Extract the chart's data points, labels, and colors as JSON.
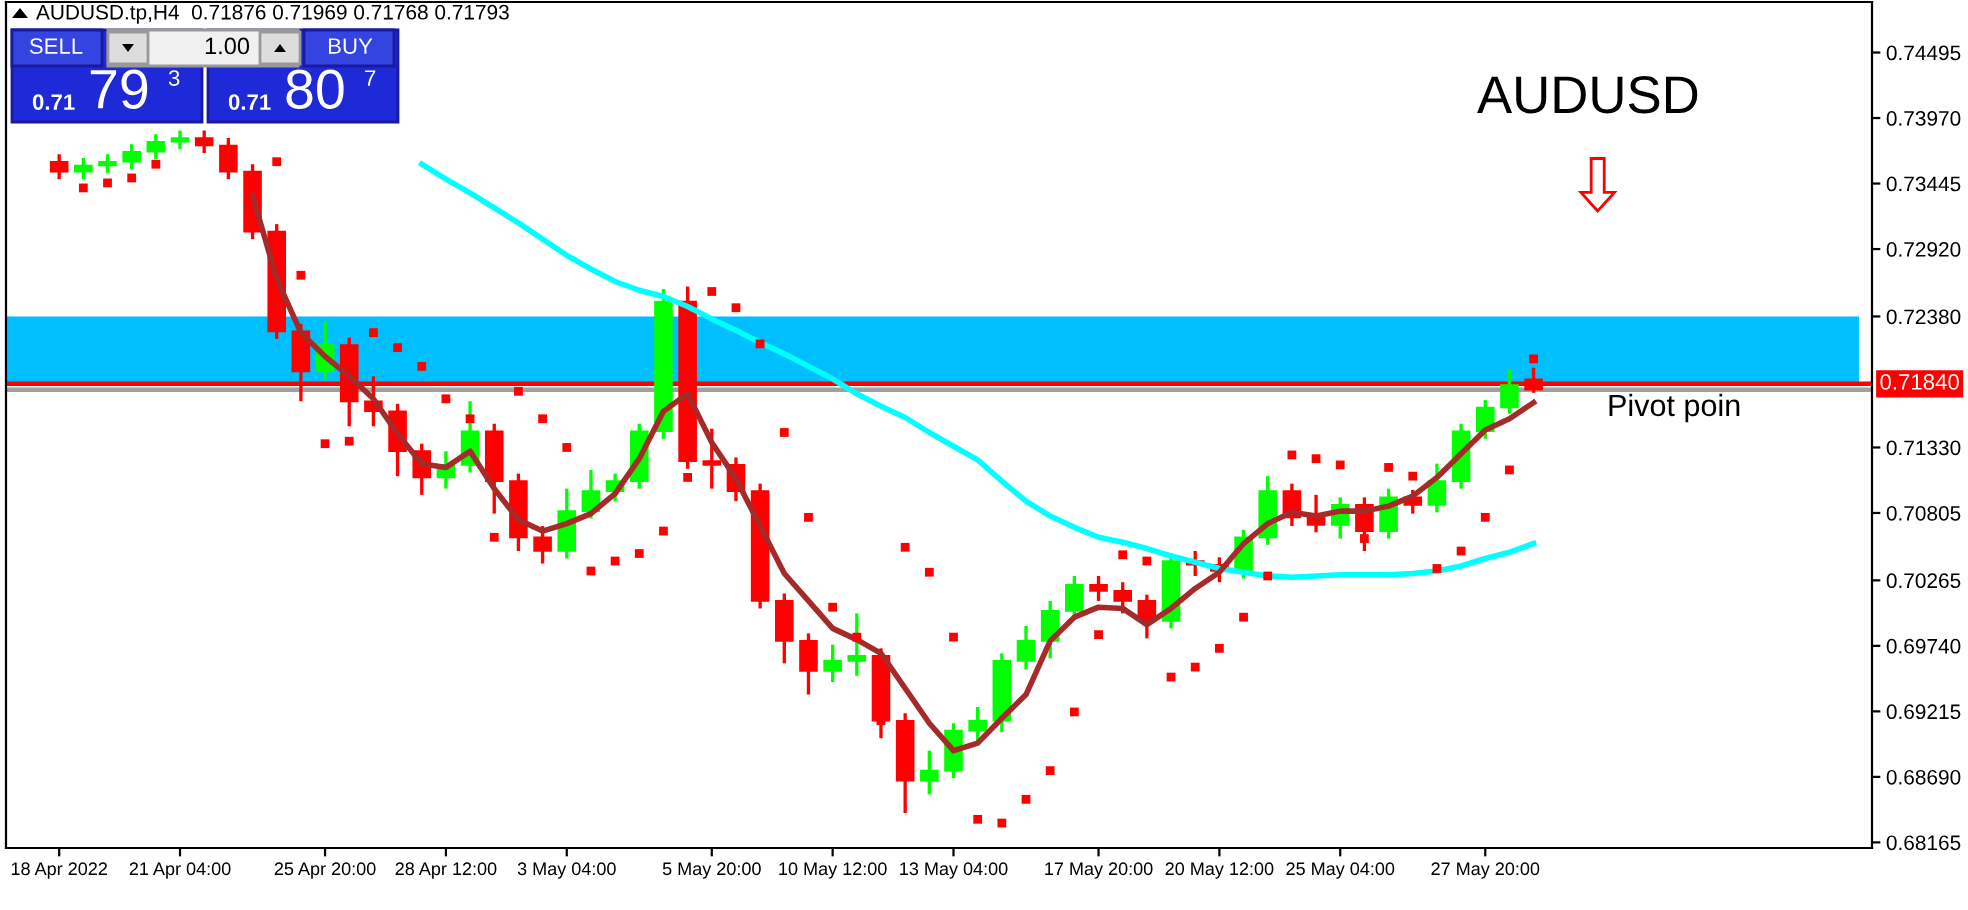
{
  "chart_data": {
    "type": "candlestick",
    "title": "AUDUSD.tp,H4  0.71876 0.71969 0.71768 0.71793",
    "categories": [
      "18 Apr 2022",
      null,
      null,
      null,
      null,
      "21 Apr 04:00",
      null,
      null,
      null,
      null,
      null,
      "25 Apr 20:00",
      null,
      null,
      null,
      null,
      "28 Apr 12:00",
      null,
      null,
      null,
      null,
      "3 May 04:00",
      null,
      null,
      null,
      null,
      null,
      "5 May 20:00",
      null,
      null,
      null,
      null,
      "10 May 12:00",
      null,
      null,
      null,
      null,
      "13 May 04:00",
      null,
      null,
      null,
      null,
      null,
      "17 May 20:00",
      null,
      null,
      null,
      null,
      "20 May 12:00",
      null,
      null,
      null,
      null,
      "25 May 04:00",
      null,
      null,
      null,
      null,
      null,
      "27 May 20:00",
      null,
      null
    ],
    "ohlc": [
      [
        0.7362,
        0.7368,
        0.7348,
        0.7354
      ],
      [
        0.7354,
        0.7365,
        0.7348,
        0.7359
      ],
      [
        0.7359,
        0.7368,
        0.7353,
        0.7362
      ],
      [
        0.7362,
        0.7376,
        0.7356,
        0.737
      ],
      [
        0.737,
        0.7384,
        0.7364,
        0.7378
      ],
      [
        0.7378,
        0.7387,
        0.7372,
        0.7381
      ],
      [
        0.7381,
        0.7387,
        0.7369,
        0.7375
      ],
      [
        0.7375,
        0.7381,
        0.7348,
        0.7354
      ],
      [
        0.7354,
        0.736,
        0.73,
        0.7306
      ],
      [
        0.7306,
        0.7312,
        0.722,
        0.7226
      ],
      [
        0.7226,
        0.7232,
        0.717,
        0.7194
      ],
      [
        0.7194,
        0.7234,
        0.7188,
        0.7215
      ],
      [
        0.7215,
        0.7221,
        0.715,
        0.717
      ],
      [
        0.717,
        0.719,
        0.715,
        0.7162
      ],
      [
        0.7162,
        0.7168,
        0.711,
        0.713
      ],
      [
        0.713,
        0.7136,
        0.7095,
        0.7109
      ],
      [
        0.7109,
        0.713,
        0.71,
        0.7119
      ],
      [
        0.7119,
        0.717,
        0.7113,
        0.7146
      ],
      [
        0.7146,
        0.7152,
        0.708,
        0.7106
      ],
      [
        0.7106,
        0.7112,
        0.705,
        0.7061
      ],
      [
        0.7061,
        0.707,
        0.704,
        0.705
      ],
      [
        0.705,
        0.71,
        0.7044,
        0.7082
      ],
      [
        0.7082,
        0.7115,
        0.7076,
        0.7098
      ],
      [
        0.7098,
        0.7112,
        0.709,
        0.7106
      ],
      [
        0.7106,
        0.7152,
        0.71,
        0.7146
      ],
      [
        0.7146,
        0.726,
        0.714,
        0.725
      ],
      [
        0.725,
        0.7262,
        0.7116,
        0.7122
      ],
      [
        0.7122,
        0.7148,
        0.71,
        0.7119
      ],
      [
        0.7119,
        0.7125,
        0.709,
        0.7098
      ],
      [
        0.7098,
        0.7104,
        0.7004,
        0.701
      ],
      [
        0.701,
        0.7016,
        0.696,
        0.6978
      ],
      [
        0.6978,
        0.6984,
        0.6935,
        0.6954
      ],
      [
        0.6954,
        0.6975,
        0.6945,
        0.6962
      ],
      [
        0.6962,
        0.7,
        0.695,
        0.6966
      ],
      [
        0.6966,
        0.6972,
        0.69,
        0.6914
      ],
      [
        0.6914,
        0.692,
        0.684,
        0.6866
      ],
      [
        0.6866,
        0.689,
        0.6855,
        0.6874
      ],
      [
        0.6874,
        0.6912,
        0.6868,
        0.6906
      ],
      [
        0.6906,
        0.6925,
        0.6895,
        0.6914
      ],
      [
        0.6914,
        0.6968,
        0.6905,
        0.6962
      ],
      [
        0.6962,
        0.699,
        0.6955,
        0.6978
      ],
      [
        0.6978,
        0.701,
        0.6964,
        0.7002
      ],
      [
        0.7002,
        0.703,
        0.6995,
        0.7023
      ],
      [
        0.7023,
        0.703,
        0.701,
        0.7018
      ],
      [
        0.7018,
        0.7025,
        0.7,
        0.701
      ],
      [
        0.701,
        0.7015,
        0.698,
        0.6994
      ],
      [
        0.6994,
        0.7048,
        0.6988,
        0.7042
      ],
      [
        0.7042,
        0.705,
        0.703,
        0.7039
      ],
      [
        0.7039,
        0.7045,
        0.7025,
        0.7034
      ],
      [
        0.7034,
        0.7067,
        0.7028,
        0.7061
      ],
      [
        0.7061,
        0.711,
        0.7055,
        0.7098
      ],
      [
        0.7098,
        0.7104,
        0.707,
        0.7077
      ],
      [
        0.7077,
        0.7095,
        0.7065,
        0.7071
      ],
      [
        0.7071,
        0.7093,
        0.706,
        0.7087
      ],
      [
        0.7087,
        0.7093,
        0.705,
        0.7066
      ],
      [
        0.7066,
        0.71,
        0.706,
        0.7093
      ],
      [
        0.7093,
        0.7099,
        0.708,
        0.7087
      ],
      [
        0.7087,
        0.712,
        0.7081,
        0.7106
      ],
      [
        0.7106,
        0.7152,
        0.71,
        0.7146
      ],
      [
        0.7146,
        0.7171,
        0.714,
        0.7165
      ],
      [
        0.7165,
        0.7195,
        0.716,
        0.7183
      ],
      [
        0.71876,
        0.71969,
        0.71768,
        0.71793
      ]
    ],
    "colors": [
      "#ff0000",
      "#00ff00",
      "#00ff00",
      "#00ff00",
      "#00ff00",
      "#00ff00",
      "#ff0000",
      "#ff0000",
      "#ff0000",
      "#ff0000",
      "#ff0000",
      "#00ff00",
      "#ff0000",
      "#ff0000",
      "#ff0000",
      "#ff0000",
      "#00ff00",
      "#00ff00",
      "#ff0000",
      "#ff0000",
      "#ff0000",
      "#00ff00",
      "#00ff00",
      "#00ff00",
      "#00ff00",
      "#00ff00",
      "#ff0000",
      "#ff0000",
      "#ff0000",
      "#ff0000",
      "#ff0000",
      "#ff0000",
      "#00ff00",
      "#00ff00",
      "#ff0000",
      "#ff0000",
      "#00ff00",
      "#00ff00",
      "#00ff00",
      "#00ff00",
      "#00ff00",
      "#00ff00",
      "#00ff00",
      "#ff0000",
      "#ff0000",
      "#ff0000",
      "#00ff00",
      "#ff0000",
      "#ff0000",
      "#00ff00",
      "#00ff00",
      "#ff0000",
      "#ff0000",
      "#00ff00",
      "#ff0000",
      "#00ff00",
      "#ff0000",
      "#00ff00",
      "#00ff00",
      "#00ff00",
      "#00ff00",
      "#ff0000"
    ],
    "series": [
      {
        "type": "line",
        "color": "#00ffff",
        "values": [
          null,
          null,
          null,
          null,
          null,
          null,
          null,
          null,
          null,
          null,
          null,
          null,
          null,
          null,
          null,
          0.736,
          0.7348,
          0.7337,
          0.7325,
          0.7313,
          0.73,
          0.7287,
          0.7276,
          0.7266,
          0.7259,
          0.7254,
          0.7246,
          0.7236,
          0.7227,
          0.7217,
          0.7208,
          0.7198,
          0.7188,
          0.7176,
          0.7166,
          0.7157,
          0.7145,
          0.7134,
          0.7123,
          0.7106,
          0.709,
          0.7078,
          0.7069,
          0.7061,
          0.7057,
          0.7052,
          0.7046,
          0.7041,
          0.7036,
          0.7033,
          0.703,
          0.7029,
          0.703,
          0.7031,
          0.7031,
          0.7031,
          0.7032,
          0.7034,
          0.7038,
          0.7044,
          0.7049,
          0.7056
        ]
      },
      {
        "type": "line",
        "color": "#a52a2a",
        "values": [
          null,
          null,
          null,
          null,
          null,
          null,
          null,
          null,
          0.7335,
          0.7268,
          0.7225,
          0.7206,
          0.719,
          0.7172,
          0.7144,
          0.712,
          0.7117,
          0.713,
          0.71,
          0.7075,
          0.7066,
          0.7072,
          0.708,
          0.7096,
          0.7124,
          0.7162,
          0.7176,
          0.7137,
          0.7108,
          0.707,
          0.7032,
          0.701,
          0.6988,
          0.6979,
          0.6968,
          0.694,
          0.6912,
          0.689,
          0.6896,
          0.6916,
          0.6935,
          0.6978,
          0.6997,
          0.7005,
          0.7004,
          0.6991,
          0.7004,
          0.702,
          0.7033,
          0.7056,
          0.7072,
          0.7081,
          0.7078,
          0.7082,
          0.7082,
          0.7086,
          0.7094,
          0.7109,
          0.7128,
          0.7147,
          0.7156,
          0.7169
        ]
      },
      {
        "type": "scatter",
        "color": "#ff0000",
        "marker": "square",
        "values": [
          null,
          0.7341,
          0.7345,
          0.7349,
          0.736,
          null,
          null,
          null,
          null,
          0.7362,
          0.7271,
          0.7136,
          0.7138,
          0.7225,
          0.7213,
          0.7198,
          0.7172,
          0.7156,
          0.7061,
          0.7178,
          0.7156,
          0.7133,
          0.7034,
          0.7042,
          0.7048,
          0.7066,
          0.7109,
          0.7258,
          0.7245,
          0.7216,
          0.7145,
          0.7077,
          0.7005,
          0.6981,
          0.6914,
          0.7053,
          0.7033,
          0.6981,
          0.6835,
          0.6832,
          0.6851,
          0.6874,
          0.6921,
          0.6983,
          0.7047,
          0.7042,
          0.6949,
          0.6957,
          0.6972,
          0.6997,
          0.703,
          0.7127,
          0.7124,
          0.7119,
          0.706,
          0.7117,
          0.711,
          0.7036,
          0.705,
          0.7077,
          0.7115,
          0.7204
        ]
      }
    ],
    "ylim": [
      0.6812,
      0.749
    ],
    "yticks": [
      {
        "value": 0.74495,
        "label": "0.74495"
      },
      {
        "value": 0.7397,
        "label": "0.73970"
      },
      {
        "value": 0.73445,
        "label": "0.73445"
      },
      {
        "value": 0.7292,
        "label": "0.72920"
      },
      {
        "value": 0.7238,
        "label": "0.72380"
      },
      {
        "value": 0.7133,
        "label": "0.71330"
      },
      {
        "value": 0.70805,
        "label": "0.70805"
      },
      {
        "value": 0.70265,
        "label": "0.70265"
      },
      {
        "value": 0.6974,
        "label": "0.69740"
      },
      {
        "value": 0.69215,
        "label": "0.69215"
      },
      {
        "value": 0.6869,
        "label": "0.68690"
      },
      {
        "value": 0.68165,
        "label": "0.68165"
      }
    ],
    "bands": [
      {
        "axis": "y",
        "from": 0.7185,
        "to": 0.7238,
        "color": "#00bfff"
      }
    ],
    "ref_lines": [
      {
        "axis": "y",
        "value": 0.7184,
        "label": "0.71840",
        "color": "#ff0000"
      },
      {
        "axis": "y",
        "value": 0.71793,
        "color": "#a0a0a0"
      }
    ],
    "annotations": [
      "AUDUSD",
      "Pivot poin",
      "SELL",
      "1.00",
      "BUY",
      "0.71",
      "79",
      "3",
      "0.71",
      "80",
      "7"
    ],
    "grid": false,
    "legend": false
  }
}
